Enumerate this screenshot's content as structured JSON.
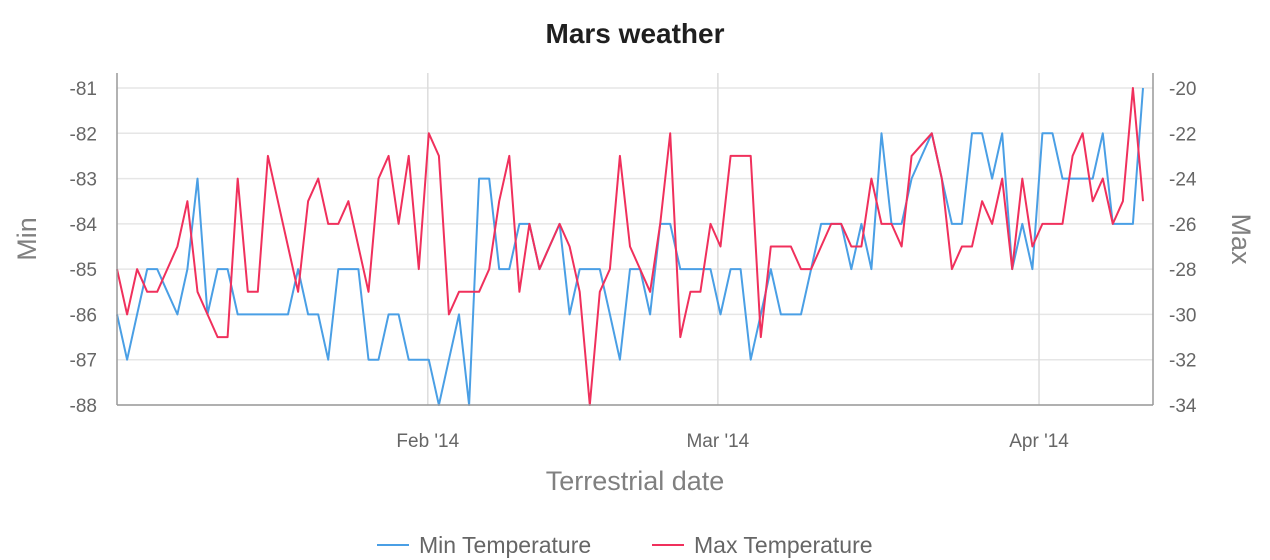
{
  "chart_data": {
    "type": "line",
    "title": "Mars weather",
    "xlabel": "Terrestrial date",
    "ylabel_left": "Min",
    "ylabel_right": "Max",
    "x_ticks": [
      "Feb '14",
      "Mar '14",
      "Apr '14"
    ],
    "y_left_ticks": [
      "-81",
      "-82",
      "-83",
      "-84",
      "-85",
      "-86",
      "-87",
      "-88"
    ],
    "y_right_ticks": [
      "-20",
      "-22",
      "-24",
      "-26",
      "-28",
      "-30",
      "-32",
      "-34"
    ],
    "y_left_range": [
      -88,
      -81
    ],
    "y_right_range": [
      -34,
      -20
    ],
    "x_range": [
      "2014-01-02",
      "2014-04-12"
    ],
    "grid": true,
    "legend_position": "bottom",
    "series": [
      {
        "name": "Min Temperature",
        "axis": "left",
        "color": "#4a9fe5",
        "values": [
          -86,
          -87,
          -86,
          -85,
          -85,
          -85.5,
          -86,
          -85,
          -83,
          -86,
          -85,
          -85,
          -86,
          -86,
          -86,
          -86,
          -86,
          -86,
          -85,
          -86,
          -86,
          -87,
          -85,
          -85,
          -85,
          -87,
          -87,
          -86,
          -86,
          -87,
          -87,
          -87,
          -88,
          -87,
          -86,
          -88,
          -83,
          -83,
          -85,
          -85,
          -84,
          -84,
          -85,
          -84.5,
          -84,
          -86,
          -85,
          -85,
          -85,
          -86,
          -87,
          -85,
          -85,
          -86,
          -84,
          -84,
          -85,
          -85,
          -85,
          -85,
          -86,
          -85,
          -85,
          -87,
          -86,
          -85,
          -86,
          -86,
          -86,
          -85,
          -84,
          -84,
          -84,
          -85,
          -84,
          -85,
          -82,
          -84,
          -84,
          -83,
          -82.5,
          -82,
          -83,
          -84,
          -84,
          -82,
          -82,
          -83,
          -82,
          -85,
          -84,
          -85,
          -82,
          -82,
          -83,
          -83,
          -83,
          -83,
          -82,
          -84,
          -84,
          -84,
          -81
        ]
      },
      {
        "name": "Max Temperature",
        "axis": "right",
        "color": "#f0305c",
        "values": [
          -28,
          -30,
          -28,
          -29,
          -29,
          -28,
          -27,
          -25,
          -29,
          -30,
          -31,
          -31,
          -24,
          -29,
          -29,
          -23,
          -25,
          -27,
          -29,
          -25,
          -24,
          -26,
          -26,
          -25,
          -27,
          -29,
          -24,
          -23,
          -26,
          -23,
          -28,
          -22,
          -23,
          -30,
          -29,
          -29,
          -29,
          -28,
          -25,
          -23,
          -29,
          -26,
          -28,
          -27,
          -26,
          -27,
          -29,
          -34,
          -29,
          -28,
          -23,
          -27,
          -28,
          -29,
          -26,
          -22,
          -31,
          -29,
          -29,
          -26,
          -27,
          -23,
          -23,
          -23,
          -31,
          -27,
          -27,
          -27,
          -28,
          -28,
          -27,
          -26,
          -26,
          -27,
          -27,
          -24,
          -26,
          -26,
          -27,
          -23,
          -22.5,
          -22,
          -24,
          -28,
          -27,
          -27,
          -25,
          -26,
          -24,
          -28,
          -24,
          -27,
          -26,
          -26,
          -26,
          -23,
          -22,
          -25,
          -24,
          -26,
          -25,
          -20,
          -25
        ]
      }
    ]
  }
}
